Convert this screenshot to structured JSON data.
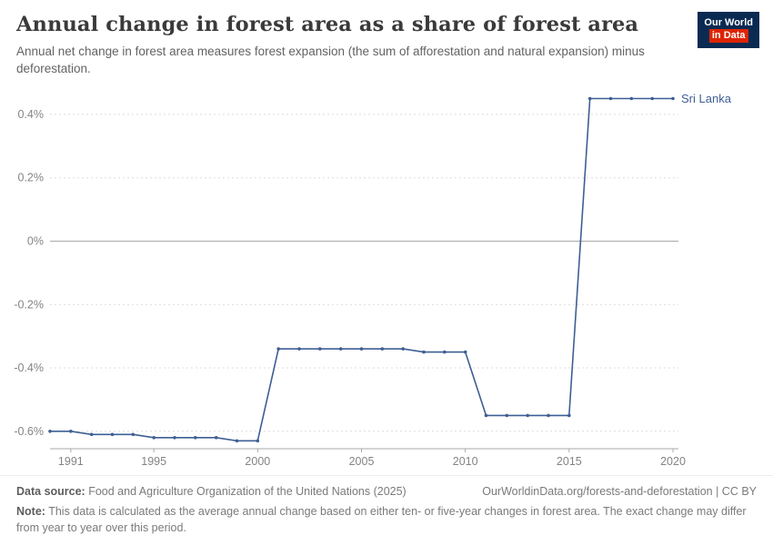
{
  "header": {
    "title": "Annual change in forest area as a share of forest area",
    "subtitle": "Annual net change in forest area measures forest expansion (the sum of afforestation and natural expansion) minus deforestation.",
    "logo": {
      "line1": "Our World",
      "line2": "in Data"
    }
  },
  "chart_data": {
    "type": "line",
    "title": "Annual change in forest area as a share of forest area",
    "xlabel": "",
    "ylabel": "",
    "grid": true,
    "legend_position": "end-of-line",
    "x_domain": [
      1990,
      2020
    ],
    "y_domain": [
      -0.655,
      0.48
    ],
    "x_ticks": [
      1991,
      1995,
      2000,
      2005,
      2010,
      2015,
      2020
    ],
    "y_ticks": [
      0.4,
      0.2,
      0,
      -0.2,
      -0.4,
      -0.6
    ],
    "y_tick_labels": [
      "0.4%",
      "0.2%",
      "0%",
      "-0.2%",
      "-0.4%",
      "-0.6%"
    ],
    "colors": {
      "grid": "#dcdcdc",
      "zero_line": "#a9a9a9",
      "axis": "#a9a9a9",
      "tick_label": "#848484"
    },
    "series": [
      {
        "name": "Sri Lanka",
        "color": "#3e5f94",
        "x": [
          1990,
          1991,
          1992,
          1993,
          1994,
          1995,
          1996,
          1997,
          1998,
          1999,
          2000,
          2001,
          2002,
          2003,
          2004,
          2005,
          2006,
          2007,
          2008,
          2009,
          2010,
          2011,
          2012,
          2013,
          2014,
          2015,
          2016,
          2017,
          2018,
          2019,
          2020
        ],
        "values": [
          -0.6,
          -0.6,
          -0.61,
          -0.61,
          -0.61,
          -0.62,
          -0.62,
          -0.62,
          -0.62,
          -0.63,
          -0.63,
          -0.34,
          -0.34,
          -0.34,
          -0.34,
          -0.34,
          -0.34,
          -0.34,
          -0.35,
          -0.35,
          -0.35,
          -0.55,
          -0.55,
          -0.55,
          -0.55,
          -0.55,
          0.45,
          0.45,
          0.45,
          0.45,
          0.45
        ]
      }
    ]
  },
  "footer": {
    "source_label": "Data source:",
    "source_text": " Food and Agriculture Organization of the United Nations (2025)",
    "link_text": "OurWorldinData.org/forests-and-deforestation | CC BY",
    "note_label": "Note:",
    "note_text": " This data is calculated as the average annual change based on either ten- or five-year changes in forest area. The exact change may differ from year to year over this period."
  }
}
